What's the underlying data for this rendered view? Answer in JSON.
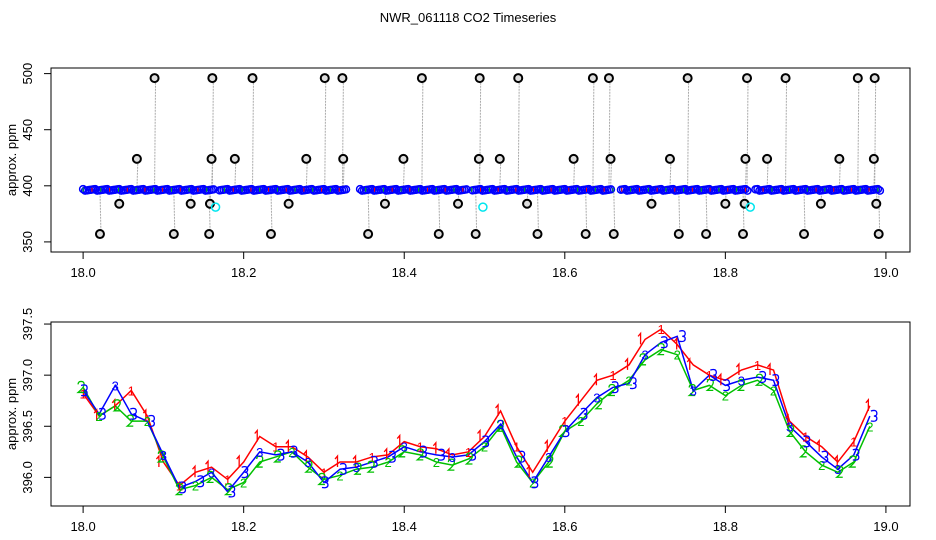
{
  "title": "NWR_061118  CO2 Timeseries",
  "chart_data": [
    {
      "type": "scatter",
      "title": "",
      "xlabel": "",
      "ylabel": "approx. ppm",
      "xlim": [
        17.96,
        19.03
      ],
      "ylim": [
        341,
        505
      ],
      "xticks": [
        "18.0",
        "18.2",
        "18.4",
        "18.6",
        "18.8",
        "19.0"
      ],
      "xtick_values": [
        18.0,
        18.2,
        18.4,
        18.6,
        18.8,
        19.0
      ],
      "yticks": [
        "350",
        "400",
        "450",
        "500"
      ],
      "ytick_values": [
        350,
        400,
        450,
        500
      ],
      "baseline": {
        "value": 396.5,
        "range": [
          18.0,
          18.995
        ],
        "gaps": [
          [
            18.163,
            18.168
          ],
          [
            18.328,
            18.345
          ],
          [
            18.478,
            18.483
          ],
          [
            18.66,
            18.668
          ],
          [
            18.829,
            18.836
          ]
        ],
        "color": "#0000ff"
      },
      "spikes": {
        "color": "#000000",
        "points": [
          [
            18.021,
            357
          ],
          [
            18.113,
            357
          ],
          [
            18.157,
            357
          ],
          [
            18.234,
            357
          ],
          [
            18.355,
            357
          ],
          [
            18.443,
            357
          ],
          [
            18.489,
            357
          ],
          [
            18.566,
            357
          ],
          [
            18.626,
            357
          ],
          [
            18.661,
            357
          ],
          [
            18.742,
            357
          ],
          [
            18.776,
            357
          ],
          [
            18.822,
            357
          ],
          [
            18.898,
            357
          ],
          [
            18.991,
            357
          ],
          [
            18.045,
            384
          ],
          [
            18.134,
            384
          ],
          [
            18.158,
            384
          ],
          [
            18.256,
            384
          ],
          [
            18.376,
            384
          ],
          [
            18.467,
            384
          ],
          [
            18.553,
            384
          ],
          [
            18.708,
            384
          ],
          [
            18.8,
            384
          ],
          [
            18.824,
            384
          ],
          [
            18.919,
            384
          ],
          [
            18.988,
            384
          ],
          [
            18.067,
            424
          ],
          [
            18.16,
            424
          ],
          [
            18.189,
            424
          ],
          [
            18.278,
            424
          ],
          [
            18.324,
            424
          ],
          [
            18.399,
            424
          ],
          [
            18.493,
            424
          ],
          [
            18.519,
            424
          ],
          [
            18.611,
            424
          ],
          [
            18.657,
            424
          ],
          [
            18.731,
            424
          ],
          [
            18.825,
            424
          ],
          [
            18.852,
            424
          ],
          [
            18.942,
            424
          ],
          [
            18.985,
            424
          ],
          [
            18.089,
            496
          ],
          [
            18.161,
            496
          ],
          [
            18.211,
            496
          ],
          [
            18.301,
            496
          ],
          [
            18.323,
            496
          ],
          [
            18.422,
            496
          ],
          [
            18.494,
            496
          ],
          [
            18.542,
            496
          ],
          [
            18.635,
            496
          ],
          [
            18.655,
            496
          ],
          [
            18.753,
            496
          ],
          [
            18.827,
            496
          ],
          [
            18.875,
            496
          ],
          [
            18.965,
            496
          ],
          [
            18.986,
            496
          ]
        ]
      },
      "flagged": {
        "color": "#00e5ee",
        "points": [
          [
            18.165,
            381
          ],
          [
            18.498,
            381
          ],
          [
            18.831,
            381
          ]
        ]
      }
    },
    {
      "type": "scatter",
      "title": "",
      "xlabel": "",
      "ylabel": "approx. ppm",
      "xlim": [
        17.96,
        19.03
      ],
      "ylim": [
        395.72,
        397.52
      ],
      "xticks": [
        "18.0",
        "18.2",
        "18.4",
        "18.6",
        "18.8",
        "19.0"
      ],
      "xtick_values": [
        18.0,
        18.2,
        18.4,
        18.6,
        18.8,
        19.0
      ],
      "yticks": [
        "396.0",
        "396.5",
        "397.0",
        "397.5"
      ],
      "ytick_values": [
        396.0,
        396.5,
        397.0,
        397.5
      ],
      "x": [
        18.0,
        18.02,
        18.04,
        18.06,
        18.08,
        18.1,
        18.12,
        18.14,
        18.16,
        18.18,
        18.2,
        18.22,
        18.24,
        18.26,
        18.28,
        18.3,
        18.32,
        18.34,
        18.36,
        18.38,
        18.4,
        18.42,
        18.44,
        18.46,
        18.48,
        18.5,
        18.52,
        18.54,
        18.56,
        18.58,
        18.6,
        18.62,
        18.64,
        18.66,
        18.68,
        18.7,
        18.72,
        18.74,
        18.76,
        18.78,
        18.8,
        18.82,
        18.84,
        18.86,
        18.88,
        18.9,
        18.92,
        18.94,
        18.96,
        18.98
      ],
      "series": [
        {
          "name": "1",
          "color": "#ff0000",
          "values": [
            396.82,
            396.6,
            396.7,
            396.85,
            396.6,
            396.15,
            395.92,
            396.05,
            396.1,
            395.98,
            396.15,
            396.4,
            396.3,
            396.3,
            396.2,
            396.05,
            396.15,
            396.15,
            396.2,
            396.22,
            396.35,
            396.3,
            396.28,
            396.22,
            396.25,
            396.4,
            396.65,
            396.3,
            396.05,
            396.3,
            396.55,
            396.75,
            396.95,
            397.0,
            397.1,
            397.35,
            397.45,
            397.3,
            397.1,
            397.0,
            396.95,
            397.05,
            397.1,
            397.05,
            396.55,
            396.4,
            396.3,
            396.15,
            396.35,
            396.7
          ]
        },
        {
          "name": "2",
          "color": "#00c000",
          "values": [
            396.88,
            396.6,
            396.7,
            396.55,
            396.55,
            396.2,
            395.88,
            395.92,
            396.0,
            395.88,
            395.95,
            396.15,
            396.2,
            396.25,
            396.1,
            395.98,
            396.02,
            396.08,
            396.1,
            396.15,
            396.25,
            396.22,
            396.15,
            396.12,
            396.18,
            396.3,
            396.5,
            396.15,
            395.95,
            396.15,
            396.45,
            396.55,
            396.72,
            396.85,
            396.95,
            397.15,
            397.25,
            397.2,
            396.85,
            396.9,
            396.8,
            396.9,
            396.95,
            396.85,
            396.45,
            396.25,
            396.12,
            396.05,
            396.15,
            396.5
          ]
        },
        {
          "name": "3",
          "color": "#0000ff",
          "values": [
            396.85,
            396.62,
            396.9,
            396.62,
            396.55,
            396.22,
            395.9,
            395.96,
            396.05,
            395.86,
            396.05,
            396.25,
            396.22,
            396.25,
            396.15,
            395.95,
            396.08,
            396.1,
            396.15,
            396.2,
            396.3,
            396.25,
            396.22,
            396.2,
            396.22,
            396.35,
            396.52,
            396.2,
            395.95,
            396.2,
            396.45,
            396.62,
            396.78,
            396.88,
            396.92,
            397.2,
            397.32,
            397.38,
            396.85,
            397.0,
            396.9,
            396.95,
            396.98,
            396.95,
            396.5,
            396.35,
            396.2,
            396.08,
            396.22,
            396.6
          ]
        }
      ]
    }
  ]
}
